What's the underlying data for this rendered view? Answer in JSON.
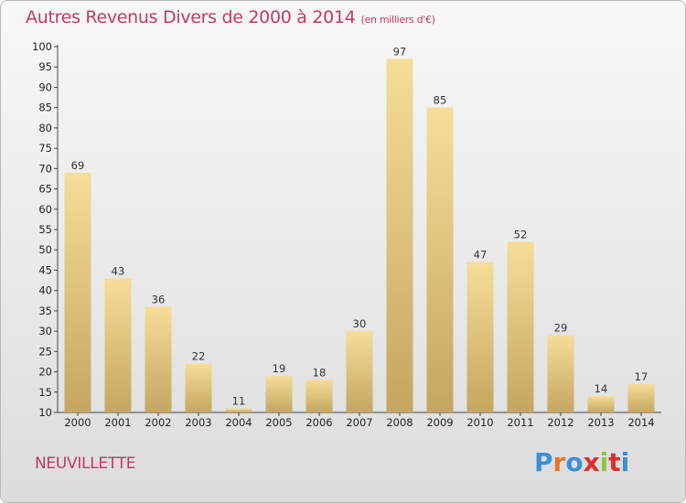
{
  "header": {
    "title": "Autres Revenus Divers de 2000 à 2014",
    "subtitle": "(en milliers d'€)"
  },
  "footer": {
    "place": "NEUVILLETTE",
    "logo": "Proxiti"
  },
  "colors": {
    "title": "#c03a62",
    "bar_top": "#f6dd98",
    "bar_bottom": "#c4a660",
    "logo": [
      "#3d8fd6",
      "#e8742b",
      "#3d8fd6",
      "#e02d2d",
      "#8cc63f",
      "#e02d2d",
      "#3d8fd6"
    ]
  },
  "chart_data": {
    "type": "bar",
    "title": "Autres Revenus Divers de 2000 à 2014",
    "subtitle": "(en milliers d'€)",
    "categories": [
      "2000",
      "2001",
      "2002",
      "2003",
      "2004",
      "2005",
      "2006",
      "2007",
      "2008",
      "2009",
      "2010",
      "2011",
      "2012",
      "2013",
      "2014"
    ],
    "values": [
      69,
      43,
      36,
      22,
      11,
      19,
      18,
      30,
      97,
      85,
      47,
      52,
      29,
      14,
      17
    ],
    "ylim": [
      10,
      100
    ],
    "yticks": [
      10,
      15,
      20,
      25,
      30,
      35,
      40,
      45,
      50,
      55,
      60,
      65,
      70,
      75,
      80,
      85,
      90,
      95,
      100
    ],
    "grid": false,
    "data_labels": true
  }
}
